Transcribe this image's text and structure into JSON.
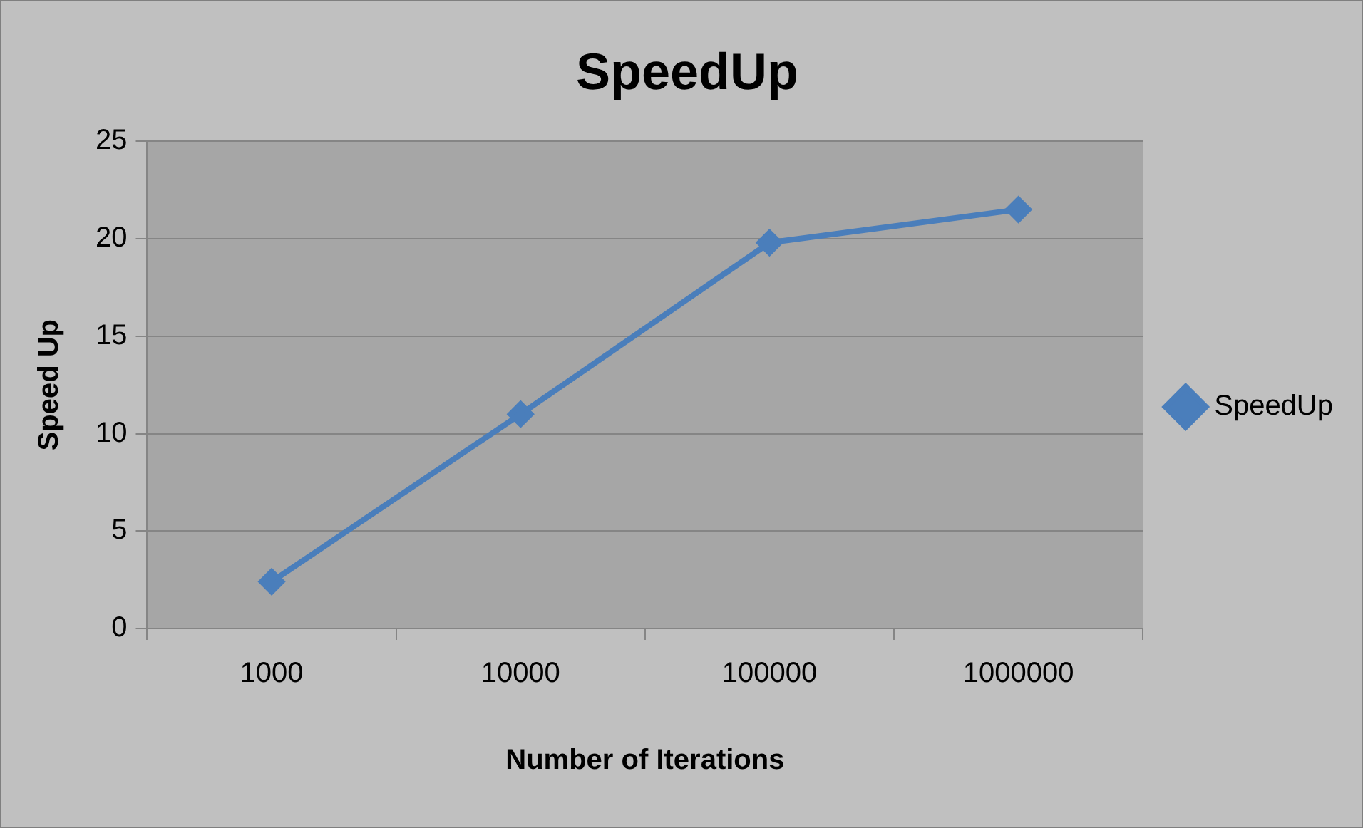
{
  "chart_data": {
    "type": "line",
    "title": "SpeedUp",
    "xlabel": "Number of Iterations",
    "ylabel": "Speed Up",
    "categories": [
      "1000",
      "10000",
      "100000",
      "1000000"
    ],
    "series": [
      {
        "name": "SpeedUp",
        "color": "#4a7ebb",
        "values": [
          2.4,
          11,
          19.8,
          21.5
        ]
      }
    ],
    "ylim": [
      0,
      25
    ],
    "yticks": [
      0,
      5,
      10,
      15,
      20,
      25
    ],
    "grid": "y",
    "legend": "right",
    "marker": "diamond",
    "line_style": "solid"
  }
}
